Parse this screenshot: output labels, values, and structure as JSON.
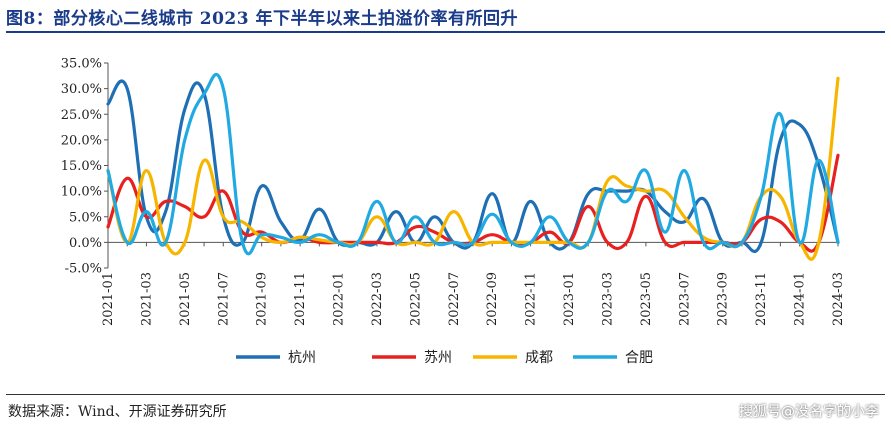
{
  "title": "图8：部分核心二线城市 2023 年下半年以来土拍溢价率有所回升",
  "source": "数据来源：Wind、开源证券研究所",
  "watermark": "搜狐号@没名字的小李",
  "chart_data": {
    "type": "line",
    "x": [
      "2021-01",
      "2021-02",
      "2021-03",
      "2021-04",
      "2021-05",
      "2021-06",
      "2021-07",
      "2021-08",
      "2021-09",
      "2021-10",
      "2021-11",
      "2021-12",
      "2022-01",
      "2022-02",
      "2022-03",
      "2022-04",
      "2022-05",
      "2022-06",
      "2022-07",
      "2022-08",
      "2022-09",
      "2022-10",
      "2022-11",
      "2022-12",
      "2023-01",
      "2023-02",
      "2023-03",
      "2023-04",
      "2023-05",
      "2023-06",
      "2023-07",
      "2023-08",
      "2023-09",
      "2023-10",
      "2023-11",
      "2023-12",
      "2024-01",
      "2024-02",
      "2024-03"
    ],
    "tick_labels": [
      "2021-01",
      "2021-03",
      "2021-05",
      "2021-07",
      "2021-09",
      "2021-11",
      "2022-01",
      "2022-03",
      "2022-05",
      "2022-07",
      "2022-09",
      "2022-11",
      "2023-01",
      "2023-03",
      "2023-05",
      "2023-07",
      "2023-09",
      "2023-11",
      "2024-01",
      "2024-03"
    ],
    "y_ticks": [
      "-5.0%",
      "0.0%",
      "5.0%",
      "10.0%",
      "15.0%",
      "20.0%",
      "25.0%",
      "30.0%",
      "35.0%"
    ],
    "ylim": [
      -5,
      35
    ],
    "grid": false,
    "legend_position": "bottom",
    "series": [
      {
        "name": "杭州",
        "color": "#1f6fb5",
        "values": [
          27,
          30,
          5,
          6,
          26,
          29,
          5,
          0,
          11,
          4,
          0.5,
          6.5,
          0,
          0,
          0,
          6,
          0,
          5,
          0,
          0,
          9.5,
          0,
          8,
          0,
          0,
          9.5,
          10,
          10,
          10,
          6,
          4,
          8.5,
          0,
          0,
          0,
          20,
          23,
          15,
          0
        ]
      },
      {
        "name": "苏州",
        "color": "#e8201f",
        "values": [
          3,
          12.5,
          5,
          8,
          7,
          5,
          10,
          2,
          2,
          0,
          1,
          0,
          0,
          0,
          0,
          0,
          3,
          2,
          0,
          0,
          1.5,
          0,
          0,
          2,
          0,
          7,
          0,
          0,
          9,
          0,
          0,
          0,
          0,
          0,
          4.5,
          4,
          0,
          0,
          17
        ]
      },
      {
        "name": "成都",
        "color": "#f7b500",
        "values": [
          14,
          0,
          14,
          0,
          0,
          16,
          5,
          4,
          1,
          0,
          1,
          0.5,
          0,
          0,
          5,
          0,
          0,
          0,
          6,
          0,
          0,
          0,
          0,
          0,
          0,
          0,
          12,
          11,
          10,
          10,
          5,
          1,
          0,
          0,
          9,
          9,
          0,
          0,
          32
        ]
      },
      {
        "name": "合肥",
        "color": "#21a9e1",
        "values": [
          14,
          0,
          6,
          0,
          20,
          29,
          30,
          0,
          1.5,
          1,
          0,
          1.5,
          0,
          0,
          8,
          0,
          5,
          0,
          0,
          0,
          5.5,
          0,
          0,
          5,
          0,
          0,
          10,
          8,
          14,
          2,
          14,
          0,
          0,
          0,
          9,
          25,
          0,
          16,
          0
        ]
      }
    ]
  }
}
